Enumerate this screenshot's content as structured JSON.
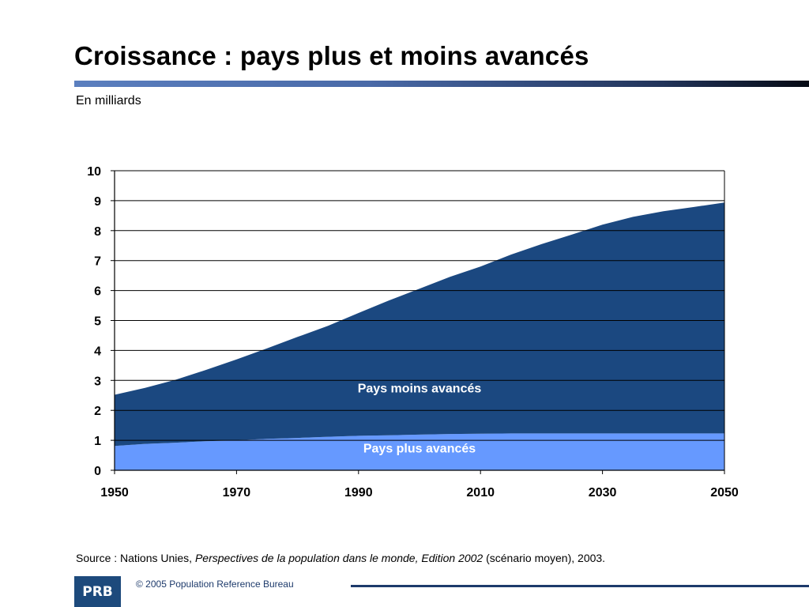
{
  "slide": {
    "title": "Croissance : pays plus et moins avancés",
    "subtitle": "En milliards",
    "source_prefix": "Source : Nations Unies, ",
    "source_italic": "Perspectives de la population dans le monde, Edition 2002",
    "source_suffix": " (scénario moyen), 2003.",
    "logo_text": "PRB",
    "copyright": "© 2005 Population Reference Bureau"
  },
  "colors": {
    "less_developed": "#1b4880",
    "more_developed": "#6699ff",
    "title_rule": "#4a6aa8",
    "footer": "#1d3a6b"
  },
  "chart_data": {
    "type": "area",
    "stacked": true,
    "xlim": [
      1950,
      2050
    ],
    "ylim": [
      0,
      10
    ],
    "x_ticks": [
      1950,
      1970,
      1990,
      2010,
      2030,
      2050
    ],
    "y_ticks": [
      0,
      1,
      2,
      3,
      4,
      5,
      6,
      7,
      8,
      9,
      10
    ],
    "grid": "horizontal",
    "x": [
      1950,
      1955,
      1960,
      1965,
      1970,
      1975,
      1980,
      1985,
      1990,
      1995,
      2000,
      2005,
      2010,
      2015,
      2020,
      2025,
      2030,
      2035,
      2040,
      2045,
      2050
    ],
    "series": [
      {
        "name": "Pays plus avancés",
        "color": "#6699ff",
        "values": [
          0.81,
          0.88,
          0.92,
          0.97,
          1.0,
          1.05,
          1.08,
          1.12,
          1.15,
          1.17,
          1.19,
          1.21,
          1.22,
          1.23,
          1.23,
          1.23,
          1.23,
          1.23,
          1.23,
          1.23,
          1.23
        ]
      },
      {
        "name": "Pays moins avancés",
        "color": "#1b4880",
        "values": [
          1.71,
          1.87,
          2.1,
          2.38,
          2.7,
          3.02,
          3.37,
          3.7,
          4.1,
          4.5,
          4.87,
          5.25,
          5.58,
          5.97,
          6.32,
          6.64,
          6.97,
          7.23,
          7.42,
          7.56,
          7.71
        ]
      }
    ],
    "annotations": [
      {
        "text": "Pays moins avancés",
        "x": 2000,
        "y": 2.6,
        "color": "#ffffff"
      },
      {
        "text": "Pays plus avancés",
        "x": 2000,
        "y": 0.6,
        "color": "#ffffff"
      }
    ]
  }
}
